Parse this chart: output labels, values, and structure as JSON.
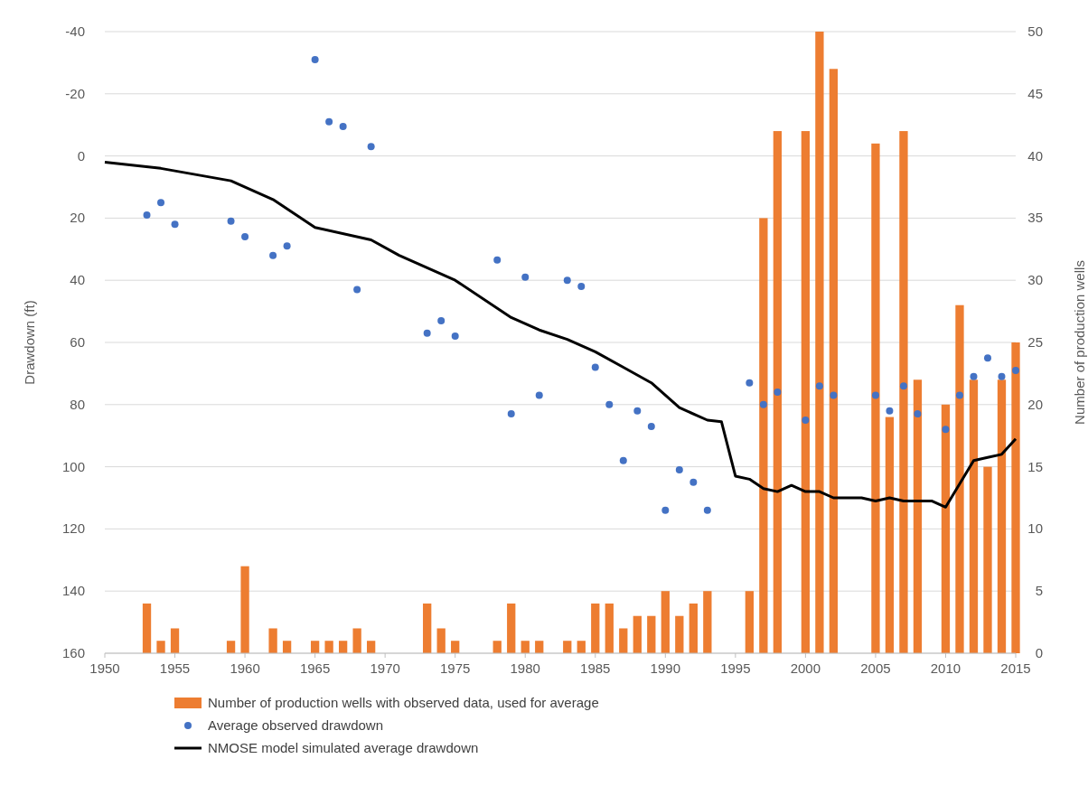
{
  "chart_data": {
    "type": "bar",
    "ylabel": "Drawdown (ft)",
    "y2label": "Number of production wells",
    "xlim": [
      1950,
      2015
    ],
    "xticks": [
      1950,
      1955,
      1960,
      1965,
      1970,
      1975,
      1980,
      1985,
      1990,
      1995,
      2000,
      2005,
      2010,
      2015
    ],
    "ylim": [
      160,
      -40
    ],
    "yticks": [
      -40,
      -20,
      0,
      20,
      40,
      60,
      80,
      100,
      120,
      140,
      160
    ],
    "y2lim": [
      0,
      50
    ],
    "y2ticks": [
      0,
      5,
      10,
      15,
      20,
      25,
      30,
      35,
      40,
      45,
      50
    ],
    "grid": "y",
    "legend": "bottom",
    "series": [
      {
        "name": "Number of production wells with observed data, used for average",
        "axis": "y2",
        "color": "#ed7d31",
        "x": [
          1953,
          1954,
          1955,
          1959,
          1960,
          1962,
          1963,
          1965,
          1966,
          1967,
          1968,
          1969,
          1973,
          1974,
          1975,
          1978,
          1979,
          1980,
          1981,
          1983,
          1984,
          1985,
          1986,
          1987,
          1988,
          1989,
          1990,
          1991,
          1992,
          1993,
          1996,
          1997,
          1998,
          2000,
          2001,
          2002,
          2005,
          2006,
          2007,
          2008,
          2010,
          2011,
          2012,
          2013,
          2014,
          2015
        ],
        "values": [
          4,
          1,
          2,
          1,
          7,
          2,
          1,
          1,
          1,
          1,
          2,
          1,
          4,
          2,
          1,
          1,
          4,
          1,
          1,
          1,
          1,
          4,
          4,
          2,
          3,
          3,
          5,
          3,
          4,
          5,
          5,
          35,
          42,
          42,
          50,
          47,
          41,
          19,
          42,
          22,
          20,
          28,
          22,
          15,
          22,
          25
        ]
      },
      {
        "name": "Average observed drawdown",
        "type": "scatter",
        "marker": "circle",
        "color": "#4472c4",
        "x": [
          1953,
          1954,
          1955,
          1959,
          1960,
          1962,
          1963,
          1965,
          1966,
          1967,
          1968,
          1969,
          1973,
          1974,
          1975,
          1978,
          1979,
          1980,
          1981,
          1983,
          1984,
          1985,
          1986,
          1987,
          1988,
          1989,
          1990,
          1991,
          1992,
          1993,
          1996,
          1997,
          1998,
          2000,
          2001,
          2002,
          2005,
          2006,
          2007,
          2008,
          2010,
          2011,
          2012,
          2013,
          2014,
          2015
        ],
        "values": [
          19,
          15,
          22,
          21,
          26,
          32,
          29,
          -31,
          -11,
          -9.5,
          43,
          -3,
          57,
          53,
          58,
          33.5,
          83,
          39,
          77,
          40,
          42,
          68,
          80,
          98,
          82,
          87,
          114,
          101,
          105,
          114,
          73,
          80,
          76,
          85,
          74,
          77,
          77,
          82,
          74,
          83,
          88,
          77,
          71,
          65,
          71,
          69
        ]
      },
      {
        "name": "NMOSE model simulated average drawdown",
        "type": "line",
        "marker": "none",
        "line_style": "solid",
        "color": "#000000",
        "x": [
          1950,
          1954,
          1959,
          1962,
          1965,
          1969,
          1971,
          1975,
          1979,
          1981,
          1983,
          1985,
          1987,
          1989,
          1991,
          1993,
          1994,
          1995,
          1996,
          1997,
          1998,
          1999,
          2000,
          2001,
          2002,
          2004,
          2005,
          2006,
          2007,
          2009,
          2010,
          2012,
          2013,
          2014,
          2015
        ],
        "values": [
          2,
          4,
          8,
          14,
          23,
          27,
          32,
          40,
          52,
          56,
          59,
          63,
          68,
          73,
          81,
          85,
          85.5,
          103,
          104,
          107,
          108,
          106,
          108,
          108,
          110,
          110,
          111,
          110,
          111,
          111,
          113,
          98,
          97,
          96,
          91
        ]
      }
    ]
  }
}
